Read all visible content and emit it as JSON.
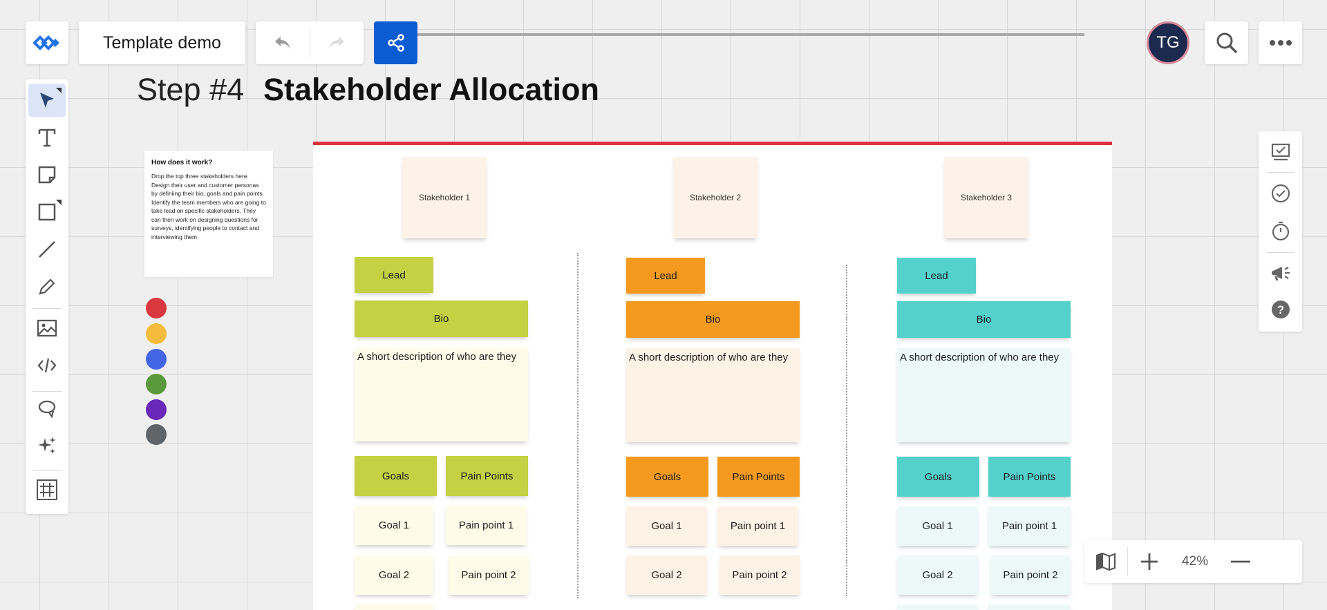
{
  "header": {
    "board_title": "Template demo",
    "avatar_initials": "TG"
  },
  "heading": {
    "step": "Step #4",
    "title": "Stakeholder Allocation"
  },
  "howto": {
    "title": "How does it work?",
    "body": "Drop the top three stakeholders here. Design their user and customer personas by definiing their bio, goals and pain points. Identify the team members who are going to take lead on specific stakeholders. They can then work on designing questions for surveys, identifying people to contact and interviewing them."
  },
  "swatches": [
    "#d9383f",
    "#f4bb3c",
    "#4466e6",
    "#5a9a3c",
    "#6a28b8",
    "#5f6468"
  ],
  "toolbar": {
    "tools": [
      "select-icon",
      "text-icon",
      "sticky-note-icon",
      "shape-icon",
      "line-icon",
      "pen-icon",
      "image-icon",
      "embed-icon",
      "lasso-icon",
      "ai-sparkle-icon",
      "frame-icon"
    ]
  },
  "columns": [
    {
      "stakeholder": "Stakeholder 1",
      "color": "#c3d143",
      "light": "#fefce8",
      "lead": "Lead",
      "bio": "Bio",
      "bio_desc": "A short description of who are they",
      "goals_label": "Goals",
      "pain_label": "Pain Points",
      "goals": [
        "Goal 1",
        "Goal 2"
      ],
      "pains": [
        "Pain point 1",
        "Pain point 2"
      ]
    },
    {
      "stakeholder": "Stakeholder 2",
      "color": "#f59a1e",
      "light": "#fdf2e6",
      "lead": "Lead",
      "bio": "Bio",
      "bio_desc": "A short description of who are they",
      "goals_label": "Goals",
      "pain_label": "Pain Points",
      "goals": [
        "Goal 1",
        "Goal 2"
      ],
      "pains": [
        "Pain point 1",
        "Pain point 2"
      ]
    },
    {
      "stakeholder": "Stakeholder 3",
      "color": "#55d1cc",
      "light": "#edf8f8",
      "lead": "Lead",
      "bio": "Bio",
      "bio_desc": "A short description of who are they",
      "goals_label": "Goals",
      "pain_label": "Pain Points",
      "goals": [
        "Goal 1",
        "Goal 2"
      ],
      "pains": [
        "Pain point 1",
        "Pain point 2"
      ]
    }
  ],
  "zoom": {
    "level": "42%"
  },
  "colors": {
    "accent": "#0b5bd3",
    "frame_border": "#d9343d"
  }
}
